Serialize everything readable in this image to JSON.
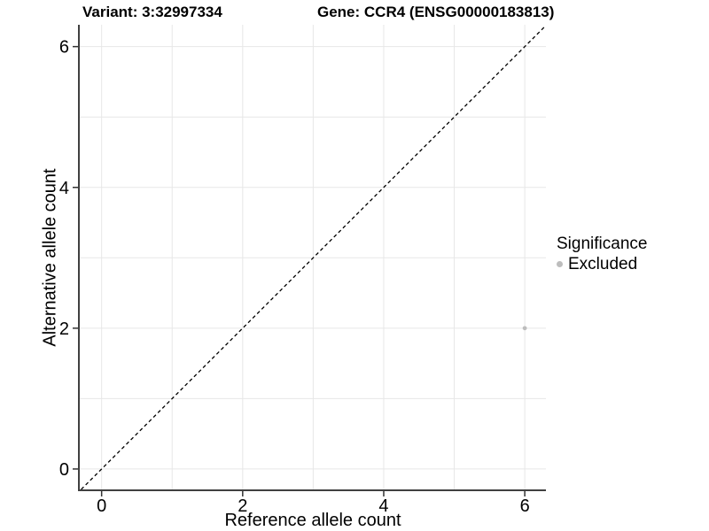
{
  "chart_data": {
    "type": "scatter",
    "title_left": "Variant: 3:32997334",
    "title_right": "Gene: CCR4 (ENSG00000183813)",
    "xlabel": "Reference allele count",
    "ylabel": "Alternative allele count",
    "xlim": [
      -0.31,
      6.3
    ],
    "ylim": [
      -0.29,
      6.31
    ],
    "x_ticks": [
      0,
      2,
      4,
      6
    ],
    "y_ticks": [
      0,
      2,
      4,
      6
    ],
    "grid_x": [
      0,
      1,
      2,
      3,
      4,
      5,
      6
    ],
    "grid_y": [
      0,
      1,
      2,
      3,
      4,
      5,
      6
    ],
    "grid_on": true,
    "identity_line": {
      "style": "dashed",
      "color": "#000000",
      "slope": 1,
      "intercept": 0
    },
    "series": [
      {
        "name": "Excluded",
        "color": "#bdbdbd",
        "points": [
          {
            "x": 6,
            "y": 2
          }
        ]
      }
    ],
    "legend": {
      "title": "Significance",
      "position": "right",
      "entries": [
        {
          "label": "Excluded",
          "color": "#bdbdbd"
        }
      ]
    },
    "colors": {
      "grid": "#e7e7e7",
      "axis": "#404040",
      "tick": "#333333",
      "text": "#000000"
    }
  }
}
